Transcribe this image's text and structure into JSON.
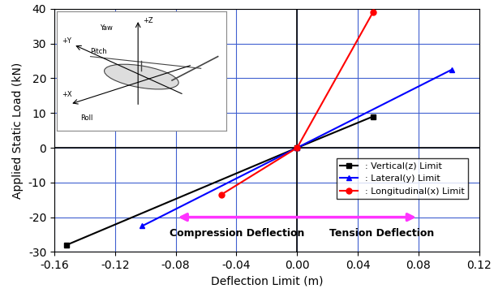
{
  "chart_data": {
    "type": "line",
    "x_label": "Deflection Limit (m)",
    "y_label": "Applied Static Load (kN)",
    "series": [
      {
        "name": ": Vertical(z) Limit",
        "color": "#000000",
        "marker": "square",
        "line_style": "solid",
        "x": [
          -0.152,
          0,
          0.05
        ],
        "values": [
          -28,
          0,
          9
        ]
      },
      {
        "name": ": Lateral(y) Limit",
        "color": "#0000ff",
        "marker": "triangle",
        "line_style": "solid",
        "x": [
          -0.102,
          0,
          0.102
        ],
        "values": [
          -22.5,
          0,
          22.5
        ]
      },
      {
        "name": ": Longitudinal(x) Limit",
        "color": "#ff0000",
        "marker": "circle",
        "line_style": "solid",
        "x": [
          -0.05,
          0,
          0.05
        ],
        "values": [
          -13.5,
          0,
          39
        ]
      }
    ],
    "xlim": [
      -0.16,
      0.12
    ],
    "xticks": [
      {
        "value": -0.16,
        "label": "-0.16"
      },
      {
        "value": -0.12,
        "label": "-0.12"
      },
      {
        "value": -0.08,
        "label": "-0.08"
      },
      {
        "value": -0.04,
        "label": "-0.04"
      },
      {
        "value": 0,
        "label": "0.00"
      },
      {
        "value": 0.04,
        "label": "0.04"
      },
      {
        "value": 0.08,
        "label": "0.08"
      },
      {
        "value": 0.12,
        "label": "0.12"
      }
    ],
    "ylim": [
      -30,
      40
    ],
    "yticks": [
      -30,
      -20,
      -10,
      0,
      10,
      20,
      30,
      40
    ],
    "grid": true,
    "legend": "lower right",
    "annotations": [
      "Compression Deflection",
      "Tension Deflection"
    ],
    "inset_labels": {
      "z": "+Z",
      "yaw": "Yaw",
      "y": "+Y",
      "pitch": "Pitch",
      "x": "+X",
      "roll": "Roll"
    }
  }
}
